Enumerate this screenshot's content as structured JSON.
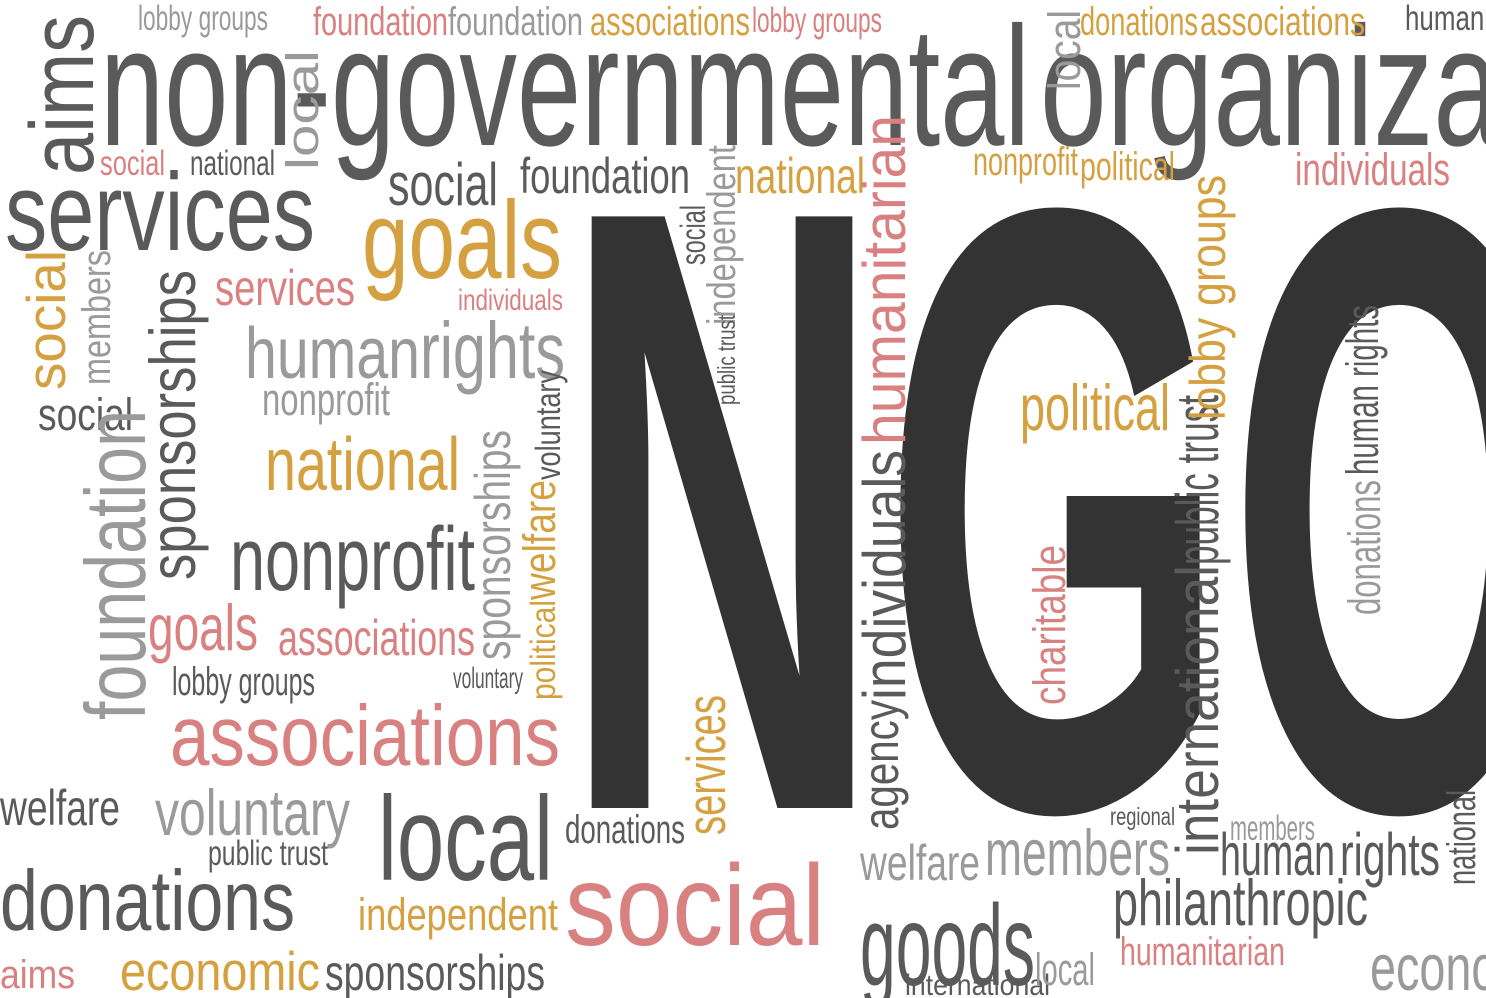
{
  "words": [
    "NGO",
    "non-governmental",
    "organiza",
    "aims",
    "services",
    "social",
    "foundation",
    "national",
    "goals",
    "services",
    "individuals",
    "human",
    "rights",
    "nonprofit",
    "social",
    "national",
    "nonprofit",
    "goals",
    "associations",
    "lobby groups",
    "associations",
    "voluntary",
    "local",
    "welfare",
    "public trust",
    "donations",
    "independent",
    "economic",
    "sponsorships",
    "aims",
    "social",
    "donations",
    "goods",
    "welfare",
    "members",
    "human",
    "rights",
    "philanthropic",
    "humanitarian",
    "international",
    "political",
    "nonprofit",
    "political",
    "individuals",
    "foundation",
    "foundation",
    "associations",
    "lobby groups",
    "donations",
    "associations",
    "human rights",
    "lobby groups",
    "social",
    "national",
    "international",
    "public trust",
    "humanitarian",
    "individuals",
    "agency",
    "donations",
    "human rights",
    "charitable",
    "welfare",
    "sponsorships",
    "foundation",
    "services",
    "national",
    "sponsorships",
    "voluntary",
    "independent",
    "lobby groups",
    "members",
    "social",
    "local",
    "local",
    "local",
    "economic",
    "public trust",
    "social",
    "members",
    "regional",
    "political",
    "voluntary"
  ]
}
